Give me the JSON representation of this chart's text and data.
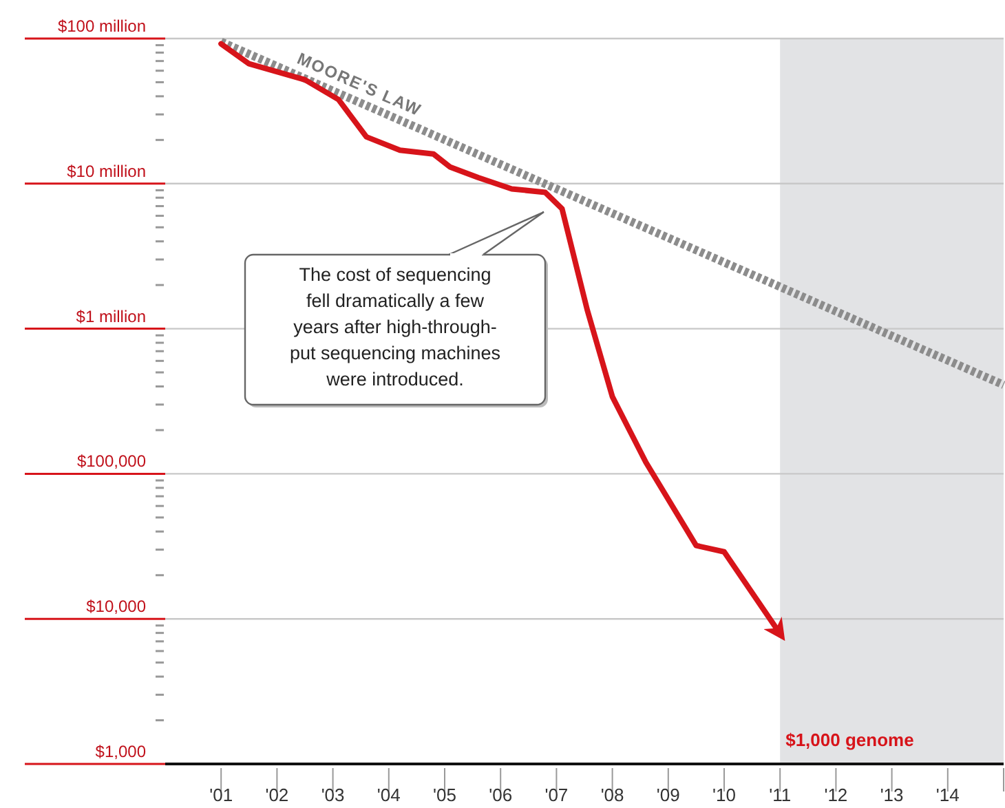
{
  "chart_data": {
    "type": "line",
    "log": "y",
    "annotations": [
      "The cost of sequencing\nfell dramatically a few\nyears after high-through-\nput sequencing machines\nwere introduced."
    ],
    "xlim": [
      2000,
      2015
    ],
    "xticks": [
      {
        "value": 2001,
        "label": "'01"
      },
      {
        "value": 2002,
        "label": "'02"
      },
      {
        "value": 2003,
        "label": "'03"
      },
      {
        "value": 2004,
        "label": "'04"
      },
      {
        "value": 2005,
        "label": "'05"
      },
      {
        "value": 2006,
        "label": "'06"
      },
      {
        "value": 2007,
        "label": "'07"
      },
      {
        "value": 2008,
        "label": "'08"
      },
      {
        "value": 2009,
        "label": "'09"
      },
      {
        "value": 2010,
        "label": "'10"
      },
      {
        "value": 2011,
        "label": "'11"
      },
      {
        "value": 2012,
        "label": "'12"
      },
      {
        "value": 2013,
        "label": "'13"
      },
      {
        "value": 2014,
        "label": "'14"
      },
      {
        "value": 2015,
        "label": null
      }
    ],
    "ylim": [
      1000,
      100000000
    ],
    "yticks": [
      {
        "value": 1000,
        "label": "$1,000"
      },
      {
        "value": 2000,
        "label": null
      },
      {
        "value": 3000,
        "label": null
      },
      {
        "value": 4000,
        "label": null
      },
      {
        "value": 5000,
        "label": null
      },
      {
        "value": 6000,
        "label": null
      },
      {
        "value": 7000,
        "label": null
      },
      {
        "value": 8000,
        "label": null
      },
      {
        "value": 9000,
        "label": null
      },
      {
        "value": 10000,
        "label": "$10,000"
      },
      {
        "value": 20000,
        "label": null
      },
      {
        "value": 30000,
        "label": null
      },
      {
        "value": 40000,
        "label": null
      },
      {
        "value": 50000,
        "label": null
      },
      {
        "value": 60000,
        "label": null
      },
      {
        "value": 70000,
        "label": null
      },
      {
        "value": 80000,
        "label": null
      },
      {
        "value": 90000,
        "label": null
      },
      {
        "value": 100000,
        "label": "$100,000"
      },
      {
        "value": 200000,
        "label": null
      },
      {
        "value": 300000,
        "label": null
      },
      {
        "value": 400000,
        "label": null
      },
      {
        "value": 500000,
        "label": null
      },
      {
        "value": 600000,
        "label": null
      },
      {
        "value": 700000,
        "label": null
      },
      {
        "value": 800000,
        "label": null
      },
      {
        "value": 900000,
        "label": null
      },
      {
        "value": 1000000,
        "label": "$1 million"
      },
      {
        "value": 2000000,
        "label": null
      },
      {
        "value": 3000000,
        "label": null
      },
      {
        "value": 4000000,
        "label": null
      },
      {
        "value": 5000000,
        "label": null
      },
      {
        "value": 6000000,
        "label": null
      },
      {
        "value": 7000000,
        "label": null
      },
      {
        "value": 8000000,
        "label": null
      },
      {
        "value": 9000000,
        "label": null
      },
      {
        "value": 10000000,
        "label": "$10 million"
      },
      {
        "value": 20000000,
        "label": null
      },
      {
        "value": 30000000,
        "label": null
      },
      {
        "value": 40000000,
        "label": null
      },
      {
        "value": 50000000,
        "label": null
      },
      {
        "value": 60000000,
        "label": null
      },
      {
        "value": 70000000,
        "label": null
      },
      {
        "value": 80000000,
        "label": null
      },
      {
        "value": 90000000,
        "label": null
      },
      {
        "value": 100000000,
        "label": "$100 million"
      }
    ],
    "grid": "y",
    "marker": "none",
    "bands": [
      {
        "axis": "x",
        "from": 2011,
        "to": 2015,
        "label": "$1,000 genome",
        "color": "#e2e3e5"
      }
    ],
    "series": [
      {
        "color": "#d7141a",
        "line_style": "solid",
        "x": [
          2001.0,
          2001.5,
          2002.5,
          2003.1,
          2003.6,
          2004.2,
          2004.8,
          2005.1,
          2005.6,
          2006.2,
          2006.8,
          2007.1,
          2007.55,
          2008.0,
          2008.6,
          2009.5,
          2010.0,
          2011.0
        ],
        "values": [
          92000000,
          67000000,
          52000000,
          38000000,
          21000000,
          17000000,
          16000000,
          13000000,
          11000000,
          9200000,
          8700000,
          6700000,
          1350000,
          340000,
          120000,
          32000,
          29000,
          7900
        ]
      },
      {
        "name": "MOORE'S LAW",
        "color": "#8c8c8c",
        "line_style": "dotted",
        "x": [
          2001.0,
          2015.0
        ],
        "values": [
          95000000,
          410000
        ]
      }
    ]
  }
}
